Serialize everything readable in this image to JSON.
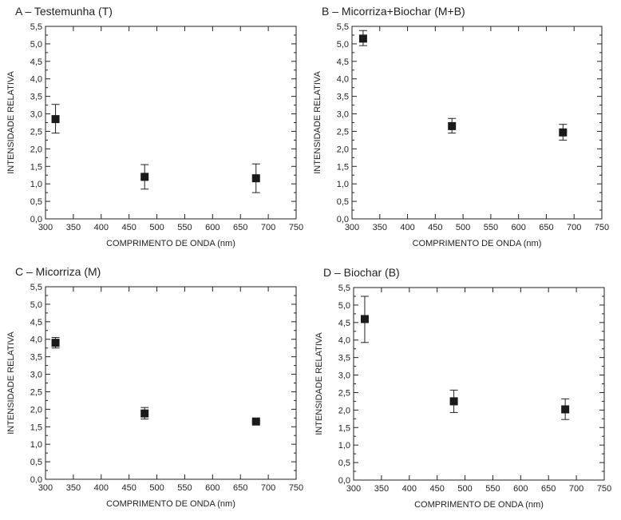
{
  "chart_data": [
    {
      "type": "scatter",
      "title": "A – Testemunha (T)",
      "xlabel": "COMPRIMENTO DE ONDA  (nm)",
      "ylabel": "INTENSIDADE RELATIVA",
      "xlim": [
        300,
        750
      ],
      "ylim": [
        0,
        5.5
      ],
      "xticks": [
        "300",
        "350",
        "400",
        "450",
        "500",
        "550",
        "600",
        "650",
        "700",
        "750"
      ],
      "yticks": [
        "0,0",
        "0,5",
        "1,0",
        "1,5",
        "2,0",
        "2,5",
        "3,0",
        "3,5",
        "4,0",
        "4,5",
        "5,0",
        "5,5"
      ],
      "points": [
        {
          "x": 318,
          "y": 2.85,
          "err_low": 2.45,
          "err_high": 3.27
        },
        {
          "x": 478,
          "y": 1.2,
          "err_low": 0.85,
          "err_high": 1.55
        },
        {
          "x": 678,
          "y": 1.16,
          "err_low": 0.75,
          "err_high": 1.57
        }
      ]
    },
    {
      "type": "scatter",
      "title": "B – Micorriza+Biochar (M+B)",
      "xlabel": "COMPRIMENTO DE ONDA  (nm)",
      "ylabel": "INTENSIDADE RELATIVA",
      "xlim": [
        300,
        750
      ],
      "ylim": [
        0,
        5.5
      ],
      "xticks": [
        "300",
        "350",
        "400",
        "450",
        "500",
        "550",
        "600",
        "650",
        "700",
        "750"
      ],
      "yticks": [
        "0,0",
        "0,5",
        "1,0",
        "1,5",
        "2,0",
        "2,5",
        "3,0",
        "3,5",
        "4,0",
        "4,5",
        "5,0",
        "5,5"
      ],
      "points": [
        {
          "x": 320,
          "y": 5.15,
          "err_low": 4.95,
          "err_high": 5.38
        },
        {
          "x": 480,
          "y": 2.65,
          "err_low": 2.45,
          "err_high": 2.87
        },
        {
          "x": 680,
          "y": 2.47,
          "err_low": 2.25,
          "err_high": 2.7
        }
      ]
    },
    {
      "type": "scatter",
      "title": "C – Micorriza (M)",
      "xlabel": "COMPRIMENTO DE ONDA  (nm)",
      "ylabel": "INTENSIDADE RELATIVA",
      "xlim": [
        300,
        750
      ],
      "ylim": [
        0,
        5.5
      ],
      "xticks": [
        "300",
        "350",
        "400",
        "450",
        "500",
        "550",
        "600",
        "650",
        "700",
        "750"
      ],
      "yticks": [
        "0,0",
        "0,5",
        "1,0",
        "1,5",
        "2,0",
        "2,5",
        "3,0",
        "3,5",
        "4,0",
        "4,5",
        "5,0",
        "5,5"
      ],
      "points": [
        {
          "x": 318,
          "y": 3.9,
          "err_low": 3.75,
          "err_high": 4.05
        },
        {
          "x": 478,
          "y": 1.88,
          "err_low": 1.72,
          "err_high": 2.05
        },
        {
          "x": 678,
          "y": 1.65,
          "err_low": 1.62,
          "err_high": 1.68
        }
      ]
    },
    {
      "type": "scatter",
      "title": "D – Biochar (B)",
      "xlabel": "COMPRIMENTO DE ONDA  (nm)",
      "ylabel": "INTENSIDADE RELATIVA",
      "xlim": [
        300,
        750
      ],
      "ylim": [
        0,
        5.5
      ],
      "xticks": [
        "300",
        "350",
        "400",
        "450",
        "500",
        "550",
        "600",
        "650",
        "700",
        "750"
      ],
      "yticks": [
        "0,0",
        "0,5",
        "1,0",
        "1,5",
        "2,0",
        "2,5",
        "3,0",
        "3,5",
        "4,0",
        "4,5",
        "5,0",
        "5,5"
      ],
      "points": [
        {
          "x": 320,
          "y": 4.6,
          "err_low": 3.93,
          "err_high": 5.25
        },
        {
          "x": 480,
          "y": 2.25,
          "err_low": 1.93,
          "err_high": 2.57
        },
        {
          "x": 680,
          "y": 2.02,
          "err_low": 1.73,
          "err_high": 2.32
        }
      ]
    }
  ]
}
